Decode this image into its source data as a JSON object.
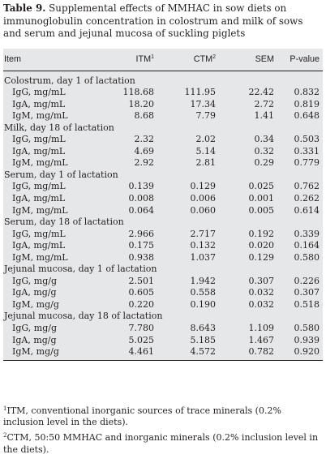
{
  "caption": {
    "label": "Table 9.",
    "text": " Supplemental effects of MMHAC in sow diets on immunoglobulin concentration in colostrum and milk of sows and serum and jejunal mucosa of suckling piglets"
  },
  "headers": {
    "item": "Item",
    "itm": "ITM",
    "itm_sup": "1",
    "ctm": "CTM",
    "ctm_sup": "2",
    "sem": "SEM",
    "p": "P-value"
  },
  "groups": [
    {
      "title": "Colostrum, day 1 of lactation",
      "rows": [
        {
          "item": "IgG, mg/mL",
          "itm": "118.68",
          "ctm": "111.95",
          "sem": "22.42",
          "p": "0.832"
        },
        {
          "item": "IgA, mg/mL",
          "itm": "18.20",
          "ctm": "17.34",
          "sem": "2.72",
          "p": "0.819"
        },
        {
          "item": "IgM, mg/mL",
          "itm": "8.68",
          "ctm": "7.79",
          "sem": "1.41",
          "p": "0.648"
        }
      ]
    },
    {
      "title": "Milk, day 18 of lactation",
      "rows": [
        {
          "item": "IgG, mg/mL",
          "itm": "2.32",
          "ctm": "2.02",
          "sem": "0.34",
          "p": "0.503"
        },
        {
          "item": "IgA, mg/mL",
          "itm": "4.69",
          "ctm": "5.14",
          "sem": "0.32",
          "p": "0.331"
        },
        {
          "item": "IgM, mg/mL",
          "itm": "2.92",
          "ctm": "2.81",
          "sem": "0.29",
          "p": "0.779"
        }
      ]
    },
    {
      "title": "Serum, day 1 of lactation",
      "rows": [
        {
          "item": "IgG, mg/mL",
          "itm": "0.139",
          "ctm": "0.129",
          "sem": "0.025",
          "p": "0.762"
        },
        {
          "item": "IgA, mg/mL",
          "itm": "0.008",
          "ctm": "0.006",
          "sem": "0.001",
          "p": "0.262"
        },
        {
          "item": "IgM, mg/mL",
          "itm": "0.064",
          "ctm": "0.060",
          "sem": "0.005",
          "p": "0.614"
        }
      ]
    },
    {
      "title": "Serum, day 18 of lactation",
      "rows": [
        {
          "item": "IgG, mg/mL",
          "itm": "2.966",
          "ctm": "2.717",
          "sem": "0.192",
          "p": "0.339"
        },
        {
          "item": "IgA, mg/mL",
          "itm": "0.175",
          "ctm": "0.132",
          "sem": "0.020",
          "p": "0.164"
        },
        {
          "item": "IgM, mg/mL",
          "itm": "0.938",
          "ctm": "1.037",
          "sem": "0.129",
          "p": "0.580"
        }
      ]
    },
    {
      "title": "Jejunal mucosa, day 1 of lactation",
      "rows": [
        {
          "item": "IgG, mg/g",
          "itm": "2.501",
          "ctm": "1.942",
          "sem": "0.307",
          "p": "0.226"
        },
        {
          "item": "IgA, mg/g",
          "itm": "0.605",
          "ctm": "0.558",
          "sem": "0.032",
          "p": "0.307"
        },
        {
          "item": "IgM, mg/g",
          "itm": "0.220",
          "ctm": "0.190",
          "sem": "0.032",
          "p": "0.518"
        }
      ]
    },
    {
      "title": "Jejunal mucosa, day 18 of lactation",
      "rows": [
        {
          "item": "IgG, mg/g",
          "itm": "7.780",
          "ctm": "8.643",
          "sem": "1.109",
          "p": "0.580"
        },
        {
          "item": "IgA, mg/g",
          "itm": "5.025",
          "ctm": "5.185",
          "sem": "1.467",
          "p": "0.939"
        },
        {
          "item": "IgM, mg/g",
          "itm": "4.461",
          "ctm": "4.572",
          "sem": "0.782",
          "p": "0.920"
        }
      ]
    }
  ],
  "footnotes": [
    {
      "mark": "1",
      "text": "ITM, conventional inorganic sources of trace minerals (0.2% inclusion level in the diets)."
    },
    {
      "mark": "2",
      "text": "CTM, 50:50 MMHAC and inorganic minerals (0.2% inclusion level in the diets)."
    }
  ],
  "colors": {
    "table_bg": "#e6e7e8",
    "text": "#231f20"
  }
}
